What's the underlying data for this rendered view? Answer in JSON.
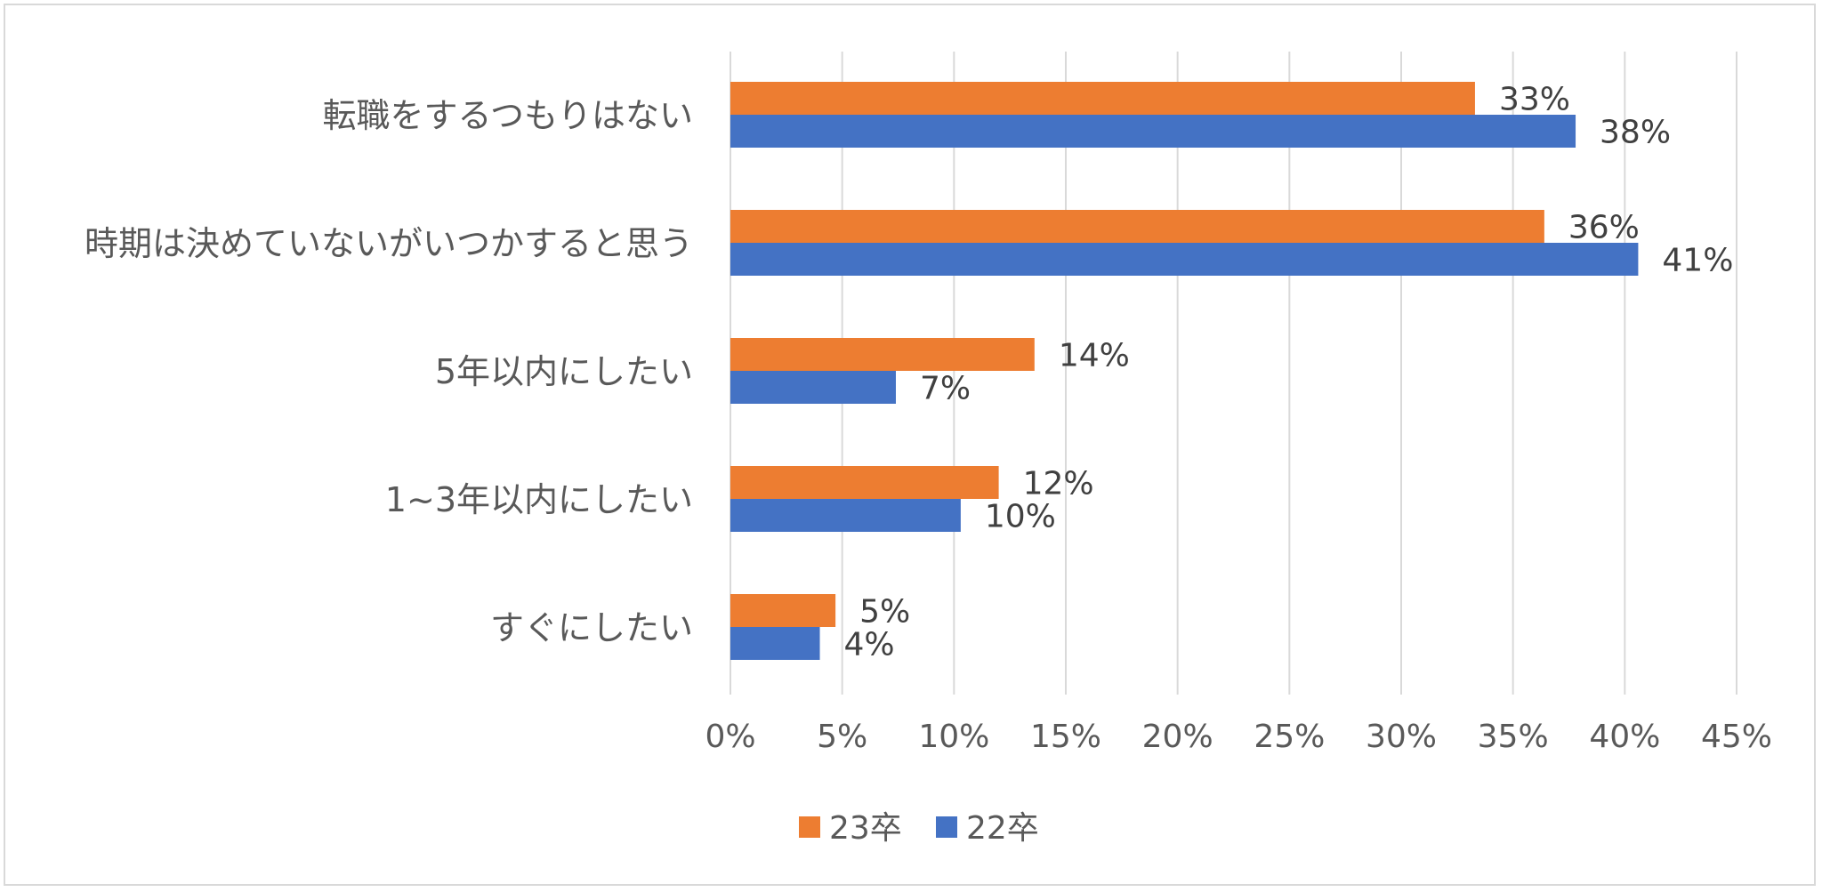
{
  "chart_data": {
    "type": "bar",
    "orientation": "horizontal",
    "title": "",
    "xlabel": "",
    "ylabel": "",
    "categories": [
      "転職をするつもりはない",
      "時期は決めていないがいつかすると思う",
      "5年以内にしたい",
      "1~3年以内にしたい",
      "すぐにしたい"
    ],
    "series": [
      {
        "name": "23卒",
        "color": "#ed7d31",
        "values": [
          33.3,
          36.4,
          13.6,
          12.0,
          4.7
        ],
        "labels": [
          "33%",
          "36%",
          "14%",
          "12%",
          "5%"
        ]
      },
      {
        "name": "22卒",
        "color": "#4472c4",
        "values": [
          37.8,
          40.6,
          7.4,
          10.3,
          4.0
        ],
        "labels": [
          "38%",
          "41%",
          "7%",
          "10%",
          "4%"
        ]
      }
    ],
    "xlim": [
      0,
      45
    ],
    "xticks": [
      0,
      5,
      10,
      15,
      20,
      25,
      30,
      35,
      40,
      45
    ],
    "xtick_labels": [
      "0%",
      "5%",
      "10%",
      "15%",
      "20%",
      "25%",
      "30%",
      "35%",
      "40%",
      "45%"
    ],
    "grid": true,
    "legend": "bottom"
  }
}
